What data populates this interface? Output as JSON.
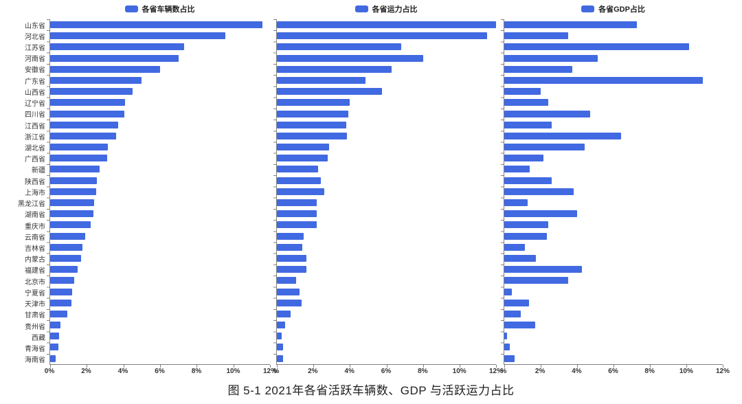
{
  "figure": {
    "caption": "图 5-1 2021年各省活跃车辆数、GDP 与活跃运力占比"
  },
  "chart_data": {
    "type": "bar",
    "orientation": "horizontal",
    "bar_color": "#4169E1",
    "axis_color": "#808080",
    "grid": false,
    "legend_position": "top-center",
    "xlim": [
      0,
      12
    ],
    "x_ticks_pct": [
      0,
      2,
      4,
      6,
      8,
      10,
      12
    ],
    "categories": [
      "山东省",
      "河北省",
      "江苏省",
      "河南省",
      "安徽省",
      "广东省",
      "山西省",
      "辽宁省",
      "四川省",
      "江西省",
      "浙江省",
      "湖北省",
      "广西省",
      "新疆",
      "陕西省",
      "上海市",
      "黑龙江省",
      "湖南省",
      "重庆市",
      "云南省",
      "吉林省",
      "内蒙古",
      "福建省",
      "北京市",
      "宁夏省",
      "天津市",
      "甘肃省",
      "贵州省",
      "西藏",
      "青海省",
      "海南省"
    ],
    "panels": [
      {
        "legend": "各省车辆数占比",
        "zero_tick_label": "0%",
        "values": [
          11.6,
          9.55,
          7.3,
          7.0,
          6.0,
          5.0,
          4.5,
          4.1,
          4.05,
          3.7,
          3.6,
          3.15,
          3.1,
          2.7,
          2.55,
          2.5,
          2.4,
          2.35,
          2.2,
          1.9,
          1.75,
          1.7,
          1.5,
          1.3,
          1.2,
          1.15,
          0.95,
          0.55,
          0.5,
          0.45,
          0.3
        ]
      },
      {
        "legend": "各省运力占比",
        "zero_tick_label": "%",
        "values": [
          12.0,
          11.5,
          6.8,
          8.0,
          6.3,
          4.85,
          5.75,
          4.0,
          3.9,
          3.8,
          3.85,
          2.85,
          2.8,
          2.25,
          2.4,
          2.6,
          2.2,
          2.2,
          2.2,
          1.45,
          1.4,
          1.6,
          1.6,
          1.05,
          1.25,
          1.35,
          0.75,
          0.45,
          0.25,
          0.35,
          0.35
        ]
      },
      {
        "legend": "各省GDP占比",
        "zero_tick_label": "%",
        "values": [
          7.3,
          3.5,
          10.15,
          5.15,
          3.75,
          10.9,
          2.0,
          2.4,
          4.7,
          2.6,
          6.4,
          4.4,
          2.15,
          1.4,
          2.6,
          3.8,
          1.3,
          4.0,
          2.4,
          2.35,
          1.15,
          1.75,
          4.25,
          3.5,
          0.4,
          1.35,
          0.9,
          1.7,
          0.15,
          0.3,
          0.55
        ]
      }
    ]
  }
}
